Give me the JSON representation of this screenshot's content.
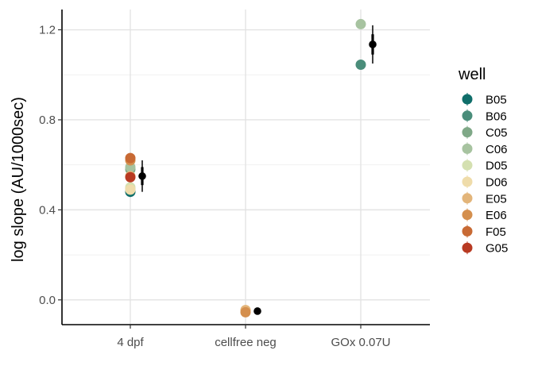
{
  "chart_data": {
    "type": "scatter",
    "title": "",
    "xlabel": "",
    "ylabel": "log slope (AU/1000sec)",
    "categories": [
      "4 dpf",
      "cellfree neg",
      "GOx 0.07U"
    ],
    "ylim": [
      -0.11,
      1.29
    ],
    "y_ticks": [
      0.0,
      0.4,
      0.8,
      1.2
    ],
    "y_tick_labels": [
      "0.0",
      "0.4",
      "0.8",
      "1.2"
    ],
    "grid": true,
    "legend": {
      "title": "well",
      "position": "right",
      "entries": [
        {
          "name": "B05",
          "color": "#0f6e6a"
        },
        {
          "name": "B06",
          "color": "#4a8d7a"
        },
        {
          "name": "C05",
          "color": "#7fa887"
        },
        {
          "name": "C06",
          "color": "#a7c3a0"
        },
        {
          "name": "D05",
          "color": "#d4e0b0"
        },
        {
          "name": "D06",
          "color": "#efdcaa"
        },
        {
          "name": "E05",
          "color": "#e3b57a"
        },
        {
          "name": "E06",
          "color": "#d48f4e"
        },
        {
          "name": "F05",
          "color": "#c86a34"
        },
        {
          "name": "G05",
          "color": "#b83a22"
        }
      ]
    },
    "points": [
      {
        "category": "4 dpf",
        "well": "B05",
        "y": 0.48
      },
      {
        "category": "4 dpf",
        "well": "B06",
        "y": 0.49
      },
      {
        "category": "4 dpf",
        "well": "C05",
        "y": 0.58
      },
      {
        "category": "4 dpf",
        "well": "C06",
        "y": 0.59
      },
      {
        "category": "4 dpf",
        "well": "D05",
        "y": 0.5
      },
      {
        "category": "4 dpf",
        "well": "D06",
        "y": 0.49
      },
      {
        "category": "4 dpf",
        "well": "E05",
        "y": 0.55
      },
      {
        "category": "4 dpf",
        "well": "E06",
        "y": 0.62
      },
      {
        "category": "4 dpf",
        "well": "F05",
        "y": 0.63
      },
      {
        "category": "4 dpf",
        "well": "G05",
        "y": 0.545
      },
      {
        "category": "cellfree neg",
        "well": "E05",
        "y": -0.045
      },
      {
        "category": "cellfree neg",
        "well": "E06",
        "y": -0.055
      },
      {
        "category": "GOx 0.07U",
        "well": "B06",
        "y": 1.045
      },
      {
        "category": "GOx 0.07U",
        "well": "C06",
        "y": 1.225
      }
    ],
    "summary": [
      {
        "category": "4 dpf",
        "mean": 0.55,
        "inner": [
          0.51,
          0.59
        ],
        "outer": [
          0.48,
          0.62
        ]
      },
      {
        "category": "cellfree neg",
        "mean": -0.05,
        "inner": null,
        "outer": null
      },
      {
        "category": "GOx 0.07U",
        "mean": 1.135,
        "inner": [
          1.09,
          1.18
        ],
        "outer": [
          1.05,
          1.22
        ]
      }
    ]
  }
}
